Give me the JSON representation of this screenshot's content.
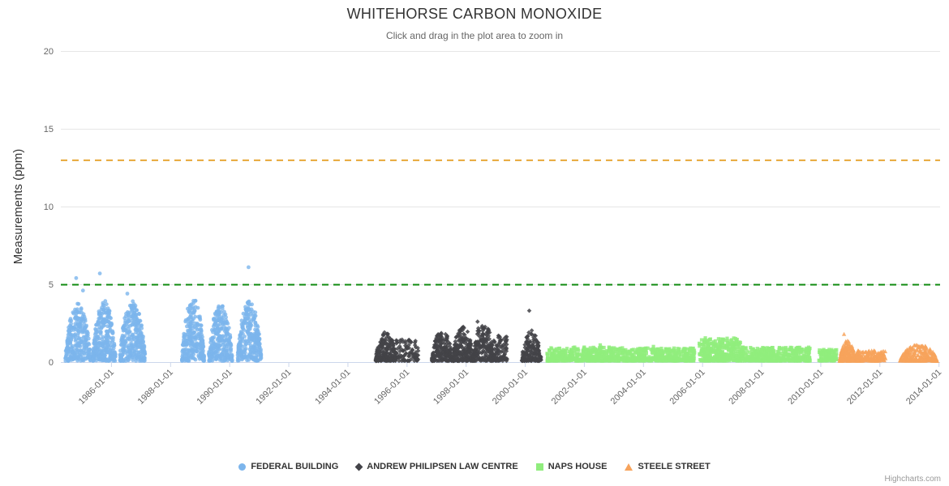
{
  "credit": "Highcharts.com",
  "chart_data": {
    "type": "scatter",
    "title": "WHITEHORSE CARBON MONOXIDE",
    "subtitle": "Click and drag in the plot area to zoom in",
    "ylabel": "Measurements (ppm)",
    "xlabel": "",
    "ylim": [
      0,
      20
    ],
    "yticks": [
      0,
      5,
      10,
      15,
      20
    ],
    "x_domain_years": [
      1984.3,
      2014.05
    ],
    "grid": true,
    "legend_position": "bottom",
    "xticks": [
      {
        "year": 1986,
        "label": "1986-01-01"
      },
      {
        "year": 1988,
        "label": "1988-01-01"
      },
      {
        "year": 1990,
        "label": "1990-01-01"
      },
      {
        "year": 1992,
        "label": "1992-01-01"
      },
      {
        "year": 1994,
        "label": "1994-01-01"
      },
      {
        "year": 1996,
        "label": "1996-01-01"
      },
      {
        "year": 1998,
        "label": "1998-01-01"
      },
      {
        "year": 2000,
        "label": "2000-01-01"
      },
      {
        "year": 2002,
        "label": "2002-01-01"
      },
      {
        "year": 2004,
        "label": "2004-01-01"
      },
      {
        "year": 2006,
        "label": "2006-01-01"
      },
      {
        "year": 2008,
        "label": "2008-01-01"
      },
      {
        "year": 2010,
        "label": "2010-01-01"
      },
      {
        "year": 2012,
        "label": "2012-01-01"
      },
      {
        "year": 2014,
        "label": "2014-01-01"
      }
    ],
    "plot_lines": [
      {
        "value": 13,
        "color": "#e8a838",
        "dash": "8 6"
      },
      {
        "value": 5,
        "color": "#0f8a0f",
        "dash": "8 6"
      }
    ],
    "series": [
      {
        "name": "FEDERAL BUILDING",
        "marker": "circle",
        "color": "#7cb5ec",
        "falloff": 1.1,
        "clusters": [
          {
            "x_start": 1984.45,
            "x_end": 1985.3,
            "count": 280,
            "y_max": 3.7,
            "profile": "peaked"
          },
          {
            "x_start": 1985.38,
            "x_end": 1986.15,
            "count": 300,
            "y_max": 3.9,
            "profile": "peaked"
          },
          {
            "x_start": 1986.3,
            "x_end": 1987.15,
            "count": 300,
            "y_max": 3.9,
            "profile": "peaked"
          },
          {
            "x_start": 1988.4,
            "x_end": 1989.15,
            "count": 260,
            "y_max": 4.1,
            "profile": "peaked"
          },
          {
            "x_start": 1989.3,
            "x_end": 1990.1,
            "count": 280,
            "y_max": 3.7,
            "profile": "peaked"
          },
          {
            "x_start": 1990.28,
            "x_end": 1991.08,
            "count": 280,
            "y_max": 3.9,
            "profile": "peaked"
          }
        ],
        "outliers": [
          [
            1984.82,
            5.4
          ],
          [
            1985.62,
            5.7
          ],
          [
            1990.65,
            6.1
          ],
          [
            1985.05,
            4.6
          ],
          [
            1986.55,
            4.4
          ]
        ]
      },
      {
        "name": "ANDREW PHILIPSEN LAW CENTRE",
        "marker": "diamond",
        "color": "#434348",
        "falloff": 1.4,
        "clusters": [
          {
            "x_start": 1994.95,
            "x_end": 1995.65,
            "count": 200,
            "y_max": 1.9,
            "profile": "peaked"
          },
          {
            "x_start": 1995.65,
            "x_end": 1996.4,
            "count": 90,
            "y_max": 1.4,
            "profile": "flat"
          },
          {
            "x_start": 1996.85,
            "x_end": 1997.55,
            "count": 190,
            "y_max": 2.0,
            "profile": "peaked"
          },
          {
            "x_start": 1997.55,
            "x_end": 1998.25,
            "count": 220,
            "y_max": 2.3,
            "profile": "peaked"
          },
          {
            "x_start": 1998.25,
            "x_end": 1998.95,
            "count": 200,
            "y_max": 2.6,
            "profile": "peaked"
          },
          {
            "x_start": 1998.95,
            "x_end": 1999.4,
            "count": 90,
            "y_max": 1.7,
            "profile": "flat"
          },
          {
            "x_start": 1999.9,
            "x_end": 2000.55,
            "count": 160,
            "y_max": 2.0,
            "profile": "peaked"
          }
        ],
        "outliers": [
          [
            2000.15,
            3.3
          ],
          [
            1998.4,
            2.6
          ]
        ]
      },
      {
        "name": "NAPS HOUSE",
        "marker": "square",
        "color": "#90ed7d",
        "falloff": 1.6,
        "clusters": [
          {
            "x_start": 2000.75,
            "x_end": 2003.0,
            "count": 430,
            "y_max": 0.9,
            "profile": "flat"
          },
          {
            "x_start": 2003.0,
            "x_end": 2005.75,
            "count": 480,
            "y_max": 0.85,
            "profile": "flat"
          },
          {
            "x_start": 2005.9,
            "x_end": 2007.3,
            "count": 330,
            "y_max": 1.5,
            "profile": "flat"
          },
          {
            "x_start": 2007.3,
            "x_end": 2009.65,
            "count": 430,
            "y_max": 0.9,
            "profile": "flat"
          },
          {
            "x_start": 2009.95,
            "x_end": 2010.55,
            "count": 110,
            "y_max": 0.75,
            "profile": "flat"
          }
        ],
        "outliers": [
          [
            2002.55,
            1.1
          ],
          [
            2004.35,
            1.0
          ]
        ]
      },
      {
        "name": "STEELE STREET",
        "marker": "triangle",
        "color": "#f7a35c",
        "falloff": 1.5,
        "clusters": [
          {
            "x_start": 2010.65,
            "x_end": 2011.2,
            "count": 200,
            "y_max": 1.35,
            "profile": "peaked"
          },
          {
            "x_start": 2011.2,
            "x_end": 2012.2,
            "count": 170,
            "y_max": 0.7,
            "profile": "flat"
          },
          {
            "x_start": 2012.7,
            "x_end": 2013.95,
            "count": 240,
            "y_max": 1.1,
            "profile": "peaked"
          }
        ],
        "outliers": [
          [
            2010.8,
            1.8
          ]
        ]
      }
    ]
  }
}
